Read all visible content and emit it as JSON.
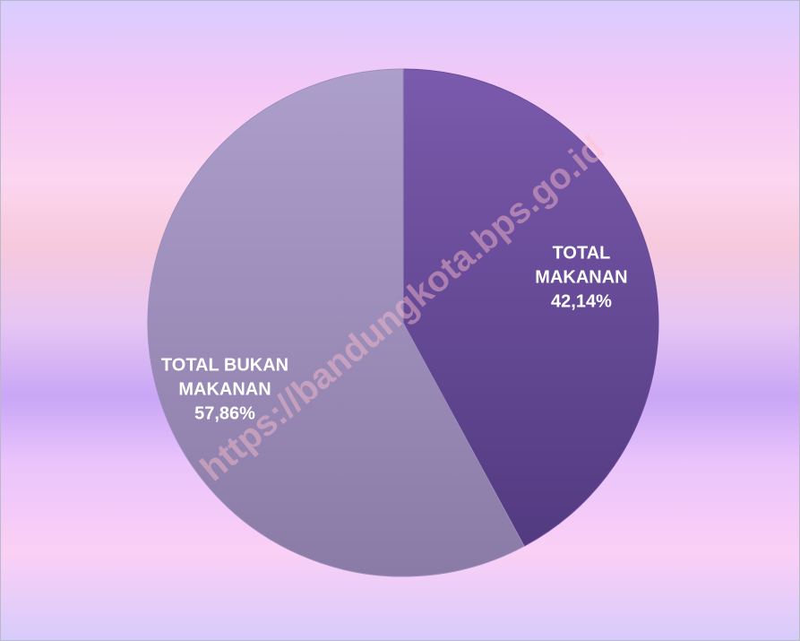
{
  "chart_data": {
    "type": "pie",
    "categories": [
      "TOTAL MAKANAN",
      "TOTAL BUKAN MAKANAN"
    ],
    "values": [
      42.14,
      57.86
    ],
    "value_labels": [
      "42,14%",
      "57,86%"
    ],
    "colors": [
      "#6b4c9c",
      "#9d8dbb"
    ],
    "watermark": "https://bandungkota.bps.go.id"
  }
}
